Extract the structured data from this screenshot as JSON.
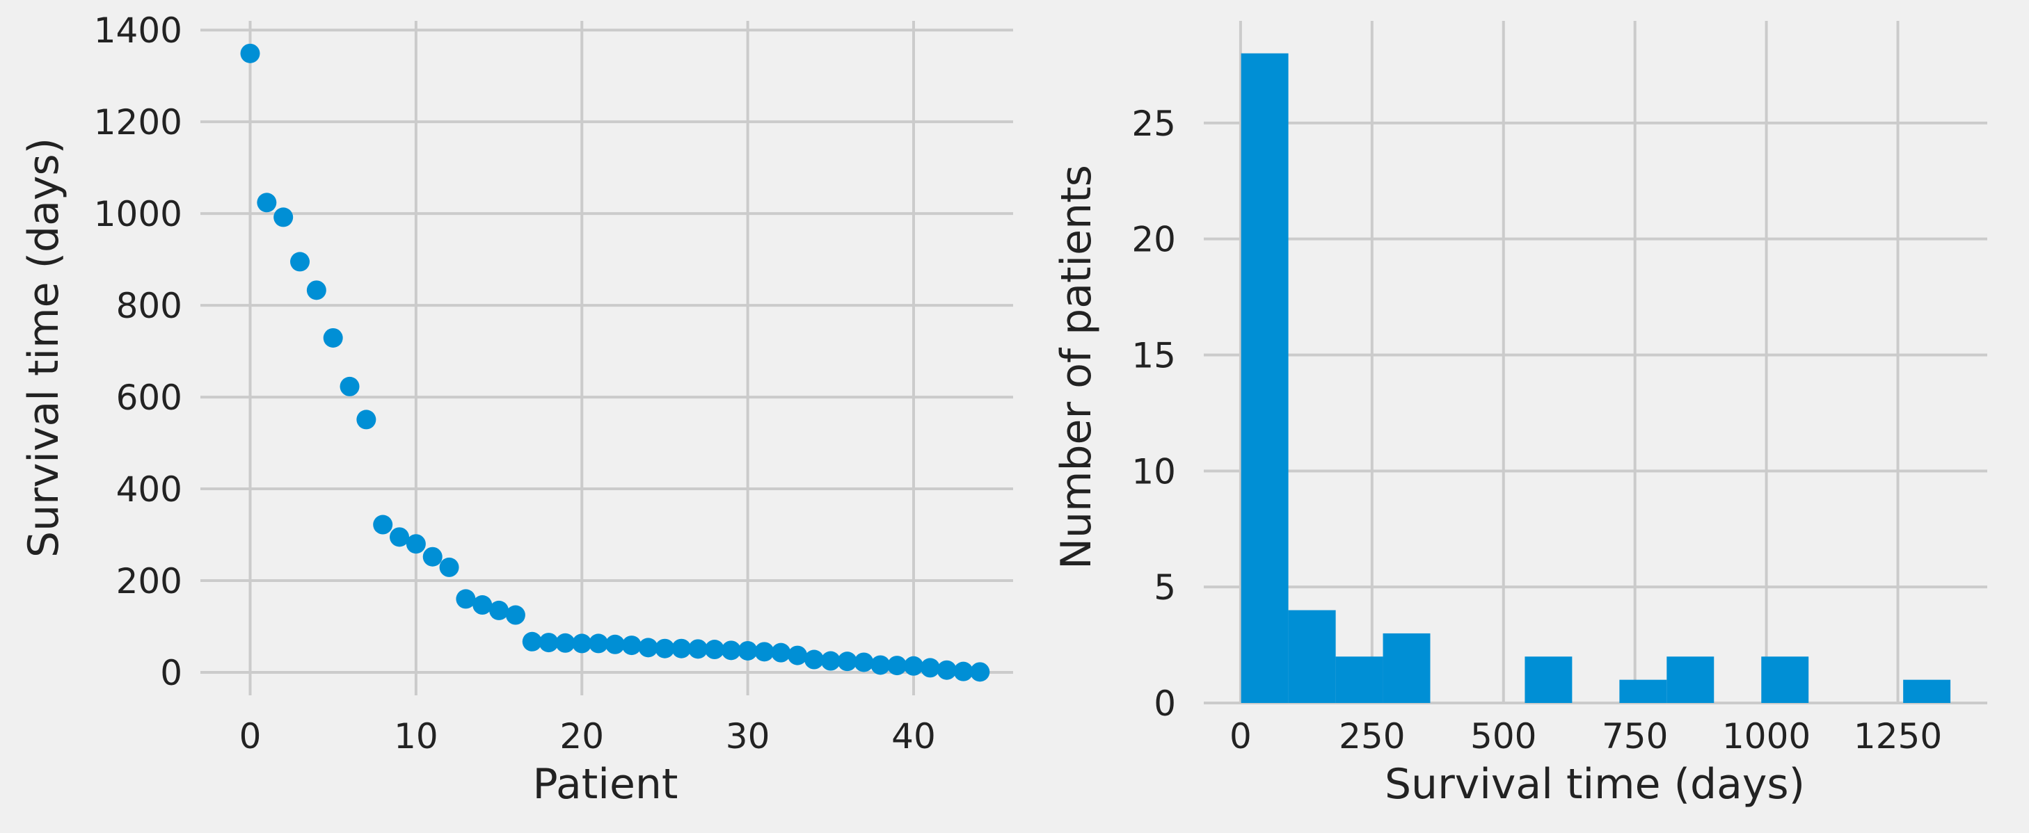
{
  "chart_data": [
    {
      "type": "scatter",
      "xlabel": "Patient",
      "ylabel": "Survival time (days)",
      "xlim": [
        -3,
        46
      ],
      "ylim": [
        -50,
        1420
      ],
      "xticks": [
        0,
        10,
        20,
        30,
        40
      ],
      "yticks": [
        0,
        200,
        400,
        600,
        800,
        1000,
        1200,
        1400
      ],
      "grid": true,
      "color": "#008fd5",
      "points": [
        {
          "x": 0,
          "y": 1349
        },
        {
          "x": 1,
          "y": 1024
        },
        {
          "x": 2,
          "y": 992
        },
        {
          "x": 3,
          "y": 895
        },
        {
          "x": 4,
          "y": 833
        },
        {
          "x": 5,
          "y": 729
        },
        {
          "x": 6,
          "y": 623
        },
        {
          "x": 7,
          "y": 551
        },
        {
          "x": 8,
          "y": 322
        },
        {
          "x": 9,
          "y": 295
        },
        {
          "x": 10,
          "y": 280
        },
        {
          "x": 11,
          "y": 252
        },
        {
          "x": 12,
          "y": 229
        },
        {
          "x": 13,
          "y": 160
        },
        {
          "x": 14,
          "y": 147
        },
        {
          "x": 15,
          "y": 135
        },
        {
          "x": 16,
          "y": 125
        },
        {
          "x": 17,
          "y": 67
        },
        {
          "x": 18,
          "y": 65
        },
        {
          "x": 19,
          "y": 64
        },
        {
          "x": 20,
          "y": 63
        },
        {
          "x": 21,
          "y": 63
        },
        {
          "x": 22,
          "y": 61
        },
        {
          "x": 23,
          "y": 59
        },
        {
          "x": 24,
          "y": 54
        },
        {
          "x": 25,
          "y": 52
        },
        {
          "x": 26,
          "y": 52
        },
        {
          "x": 27,
          "y": 51
        },
        {
          "x": 28,
          "y": 50
        },
        {
          "x": 29,
          "y": 48
        },
        {
          "x": 30,
          "y": 47
        },
        {
          "x": 31,
          "y": 45
        },
        {
          "x": 32,
          "y": 43
        },
        {
          "x": 33,
          "y": 37
        },
        {
          "x": 34,
          "y": 28
        },
        {
          "x": 35,
          "y": 25
        },
        {
          "x": 36,
          "y": 24
        },
        {
          "x": 37,
          "y": 22
        },
        {
          "x": 38,
          "y": 16
        },
        {
          "x": 39,
          "y": 15
        },
        {
          "x": 40,
          "y": 14
        },
        {
          "x": 41,
          "y": 10
        },
        {
          "x": 42,
          "y": 5
        },
        {
          "x": 43,
          "y": 2
        },
        {
          "x": 44,
          "y": 1
        }
      ]
    },
    {
      "type": "bar",
      "subtype": "histogram",
      "xlabel": "Survival time (days)",
      "ylabel": "Number of patients",
      "xlim": [
        -70,
        1420
      ],
      "ylim": [
        0,
        29.4
      ],
      "xticks": [
        0,
        250,
        500,
        750,
        1000,
        1250
      ],
      "yticks": [
        0,
        5,
        10,
        15,
        20,
        25
      ],
      "grid": true,
      "color": "#008fd5",
      "bins": [
        {
          "x0": 1,
          "x1": 90.9,
          "count": 28
        },
        {
          "x0": 90.9,
          "x1": 180.9,
          "count": 4
        },
        {
          "x0": 180.9,
          "x1": 270.8,
          "count": 2
        },
        {
          "x0": 270.8,
          "x1": 360.7,
          "count": 3
        },
        {
          "x0": 360.7,
          "x1": 450.7,
          "count": 0
        },
        {
          "x0": 450.7,
          "x1": 540.6,
          "count": 0
        },
        {
          "x0": 540.6,
          "x1": 630.5,
          "count": 2
        },
        {
          "x0": 630.5,
          "x1": 720.5,
          "count": 0
        },
        {
          "x0": 720.5,
          "x1": 810.4,
          "count": 1
        },
        {
          "x0": 810.4,
          "x1": 900.3,
          "count": 2
        },
        {
          "x0": 900.3,
          "x1": 990.3,
          "count": 0
        },
        {
          "x0": 990.3,
          "x1": 1080.2,
          "count": 2
        },
        {
          "x0": 1080.2,
          "x1": 1170.1,
          "count": 0
        },
        {
          "x0": 1170.1,
          "x1": 1260.1,
          "count": 0
        },
        {
          "x0": 1260.1,
          "x1": 1350,
          "count": 1
        }
      ]
    }
  ]
}
